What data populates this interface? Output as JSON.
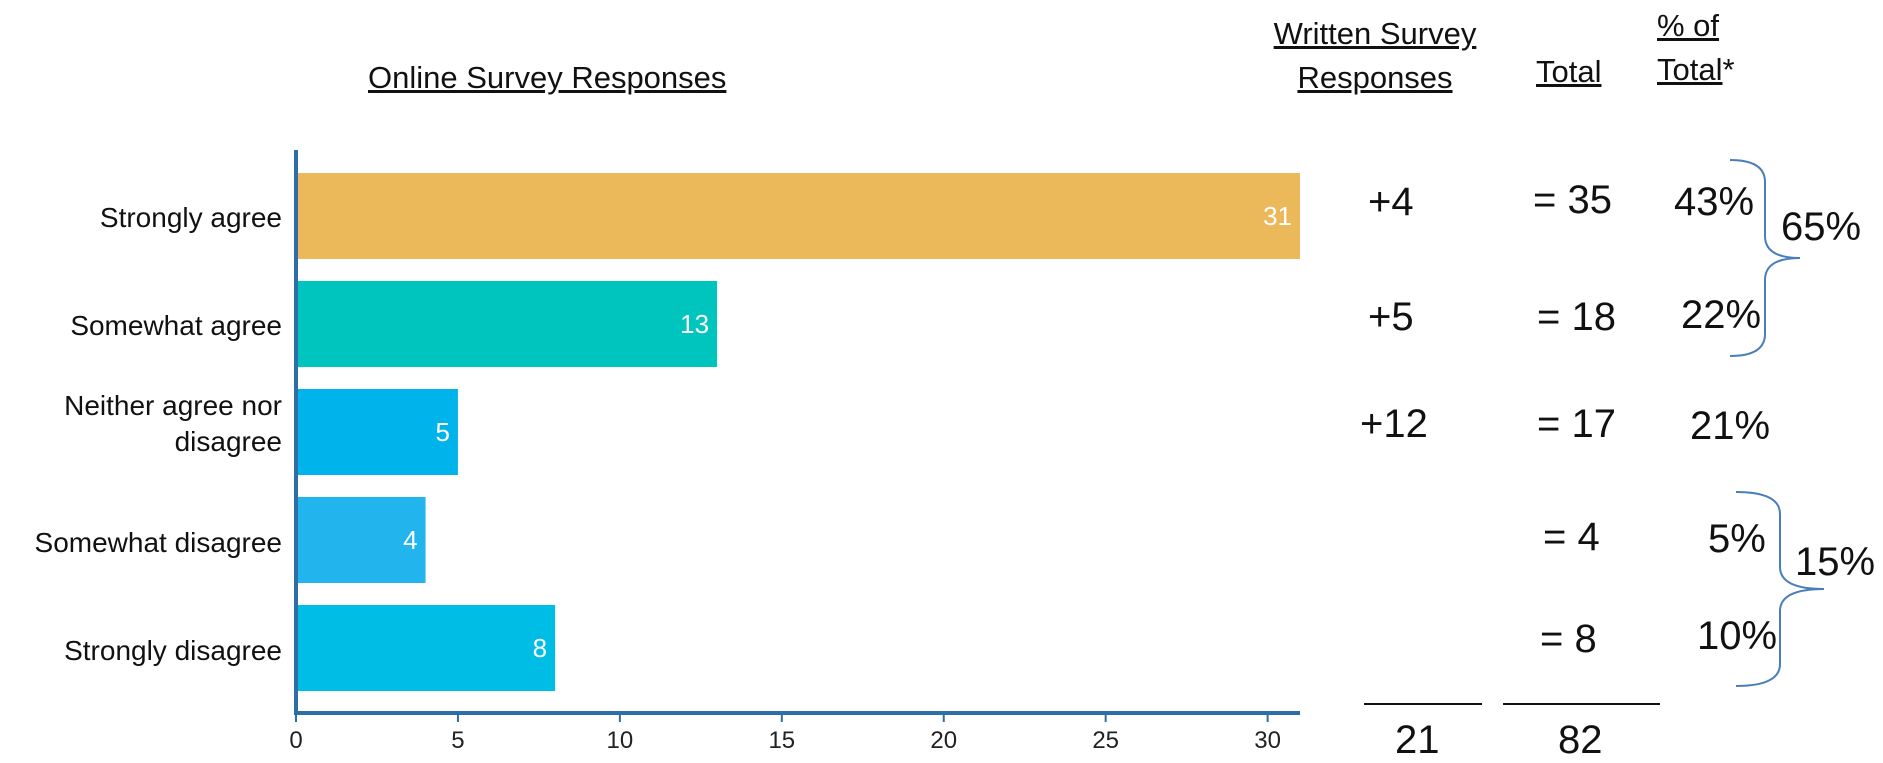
{
  "headers": {
    "online": "Online Survey Responses",
    "written_line1": "Written Survey",
    "written_line2": "Responses",
    "total": "Total",
    "pct_line1": "% of",
    "pct_line2_underlined": "Total",
    "pct_line2_suffix": "*"
  },
  "chart_data": {
    "type": "bar",
    "orientation": "horizontal",
    "title": "Online Survey Responses",
    "categories": [
      "Strongly agree",
      "Somewhat agree",
      "Neither agree nor disagree",
      "Somewhat disagree",
      "Strongly disagree"
    ],
    "category_display": [
      "Strongly agree",
      "Somewhat agree",
      "Neither agree nor\ndisagree",
      "Somewhat disagree",
      "Strongly disagree"
    ],
    "values": [
      31,
      13,
      5,
      4,
      8
    ],
    "colors": [
      "#EBB85A",
      "#00C5BE",
      "#00B4EB",
      "#22B4EC",
      "#00BDE6"
    ],
    "xlim": [
      0,
      31
    ],
    "xticks": [
      0,
      5,
      10,
      15,
      20,
      25,
      30
    ],
    "grid": false,
    "data_labels": true
  },
  "table": {
    "written": [
      "+4",
      "+5",
      "+12",
      "",
      ""
    ],
    "totals": [
      "= 35",
      "= 18",
      "= 17",
      "= 4",
      "= 8"
    ],
    "percents": [
      "43%",
      "22%",
      "21%",
      "5%",
      "10%"
    ],
    "written_sum": "21",
    "total_sum": "82",
    "agree_group_pct": "65%",
    "disagree_group_pct": "15%"
  },
  "colors": {
    "axis": "#2E6EA6",
    "brace": "#4A7EBB",
    "text": "#111111"
  }
}
